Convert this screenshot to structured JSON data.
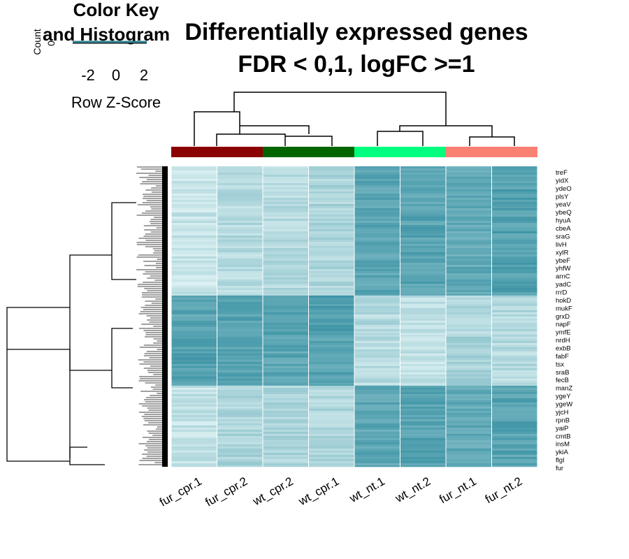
{
  "chart_data": {
    "type": "heatmap",
    "title_lines": [
      "Differentially expressed genes",
      "FDR < 0,1, logFC >=1"
    ],
    "color_key": {
      "title_lines": [
        "Color Key",
        "and Histogram"
      ],
      "ylabel": "Count",
      "ytick": "0",
      "ticks": [
        "-2",
        "0",
        "2"
      ],
      "xlabel": "Row Z-Score"
    },
    "columns": [
      "fur_cpr.1",
      "fur_cpr.2",
      "wt_cpr.2",
      "wt_cpr.1",
      "wt_nt.1",
      "wt_nt.2",
      "fur_nt.1",
      "fur_nt.2"
    ],
    "column_groups": [
      {
        "columns": [
          "fur_cpr.1",
          "fur_cpr.2"
        ],
        "color": "#8B0000"
      },
      {
        "columns": [
          "wt_cpr.2",
          "wt_cpr.1"
        ],
        "color": "#006400"
      },
      {
        "columns": [
          "wt_nt.1",
          "wt_nt.2"
        ],
        "color": "#00FF7F"
      },
      {
        "columns": [
          "fur_nt.1",
          "fur_nt.2"
        ],
        "color": "#FA8072"
      }
    ],
    "row_labels": [
      "treF",
      "yidX",
      "ydeO",
      "plsY",
      "yeaV",
      "ybeQ",
      "hyuA",
      "cbeA",
      "sraG",
      "livH",
      "xylR",
      "ybeF",
      "yhfW",
      "arnC",
      "yadC",
      "rrrD",
      "hokD",
      "mukF",
      "grxD",
      "napF",
      "ymfE",
      "nrdH",
      "exbB",
      "fabF",
      "tsx",
      "sraB",
      "fecB",
      "manZ",
      "ygeY",
      "ygeW",
      "yjcH",
      "rpnB",
      "yaiP",
      "cmtB",
      "insM",
      "ykiA",
      "flgI",
      "fur"
    ],
    "color_scale": {
      "low": "#E8F8F8",
      "high": "#2E8B9E"
    },
    "blocks": [
      {
        "rows": [
          0,
          0.43
        ],
        "values": [
          -1.3,
          -0.9,
          -0.9,
          -0.7,
          1.0,
          1.1,
          0.9,
          1.2
        ]
      },
      {
        "rows": [
          0.43,
          0.56
        ],
        "values": [
          1.0,
          1.1,
          1.3,
          1.3,
          -0.9,
          -1.1,
          -0.8,
          -0.9
        ]
      },
      {
        "rows": [
          0.56,
          0.73
        ],
        "values": [
          1.2,
          1.1,
          1.0,
          1.1,
          -1.0,
          -1.2,
          -0.6,
          -0.9
        ]
      },
      {
        "rows": [
          0.73,
          1.0
        ],
        "values": [
          -1.2,
          -0.7,
          -0.7,
          -0.8,
          1.0,
          1.1,
          0.9,
          1.1
        ]
      }
    ]
  }
}
